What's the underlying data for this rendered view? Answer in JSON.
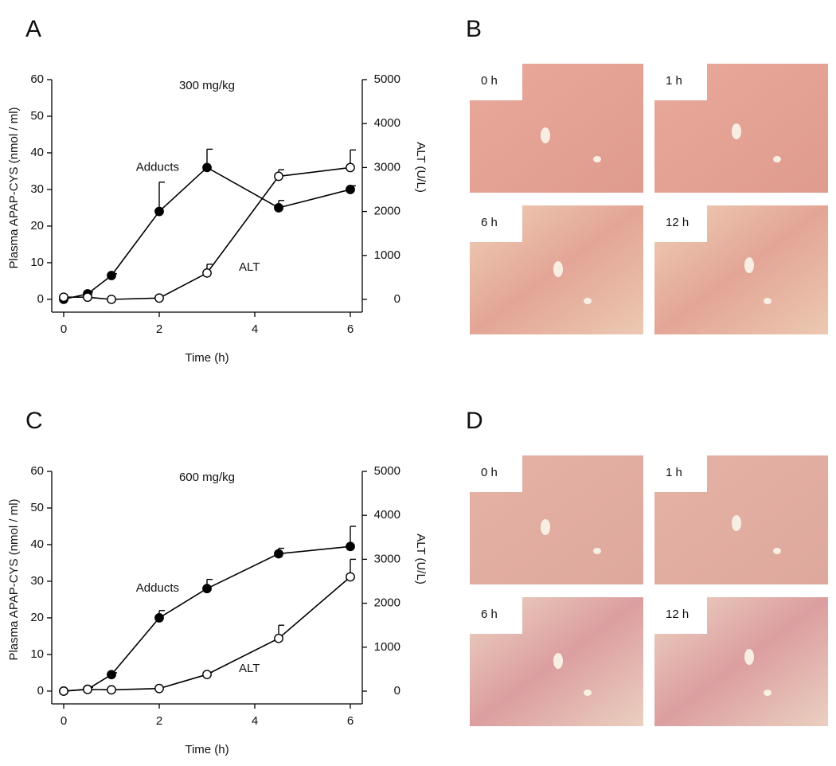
{
  "panel_labels": [
    "A",
    "B",
    "C",
    "D"
  ],
  "chart_data": [
    {
      "type": "line",
      "title": "300 mg/kg",
      "xlabel": "Time (h)",
      "ylabel": "Plasma APAP-CYS (nmol / ml)",
      "y2label": "ALT (U/L)",
      "x": [
        0,
        0.5,
        1,
        2,
        3,
        4.5,
        6
      ],
      "xlim": [
        -0.25,
        6.25
      ],
      "xticks": [
        0,
        2,
        4,
        6
      ],
      "ylim": [
        -3.5,
        60
      ],
      "yticks": [
        0,
        10,
        20,
        30,
        40,
        50,
        60
      ],
      "y2lim": [
        -290,
        5000
      ],
      "y2ticks": [
        0,
        1000,
        2000,
        3000,
        4000,
        5000
      ],
      "series": [
        {
          "name": "Adducts",
          "color": "#000000",
          "marker": "filled",
          "values": [
            0,
            1.5,
            6.5,
            24,
            36,
            25,
            30
          ],
          "errors": [
            0.5,
            0.5,
            0.5,
            8,
            5,
            2,
            1
          ]
        },
        {
          "name": "ALT",
          "color": "#000000",
          "marker": "open",
          "axis": "y2",
          "values": [
            50,
            50,
            0,
            30,
            600,
            2800,
            3000
          ],
          "errors": [
            0,
            0,
            0,
            0,
            200,
            150,
            400
          ]
        }
      ]
    },
    {
      "type": "line",
      "title": "600 mg/kg",
      "xlabel": "Time (h)",
      "ylabel": "Plasma APAP-CYS (nmol / ml)",
      "y2label": "ALT (U/L)",
      "x": [
        0,
        0.5,
        1,
        2,
        3,
        4.5,
        6
      ],
      "xlim": [
        -0.25,
        6.25
      ],
      "xticks": [
        0,
        2,
        4,
        6
      ],
      "ylim": [
        -3.5,
        60
      ],
      "yticks": [
        0,
        10,
        20,
        30,
        40,
        50,
        60
      ],
      "y2lim": [
        -290,
        5000
      ],
      "y2ticks": [
        0,
        1000,
        2000,
        3000,
        4000,
        5000
      ],
      "series": [
        {
          "name": "Adducts",
          "color": "#000000",
          "marker": "filled",
          "values": [
            0,
            0.5,
            4.5,
            20,
            28,
            37.5,
            39.5
          ],
          "errors": [
            0,
            0.5,
            0.5,
            2,
            2.5,
            1.5,
            5.5
          ]
        },
        {
          "name": "ALT",
          "color": "#000000",
          "marker": "open",
          "axis": "y2",
          "values": [
            0,
            40,
            30,
            60,
            380,
            1200,
            2600
          ],
          "errors": [
            0,
            0,
            0,
            0,
            50,
            300,
            400
          ]
        }
      ]
    }
  ],
  "histology": [
    {
      "labels": [
        "0 h",
        "1 h",
        "6 h",
        "12 h"
      ]
    },
    {
      "labels": [
        "0 h",
        "1 h",
        "6 h",
        "12 h"
      ]
    }
  ]
}
